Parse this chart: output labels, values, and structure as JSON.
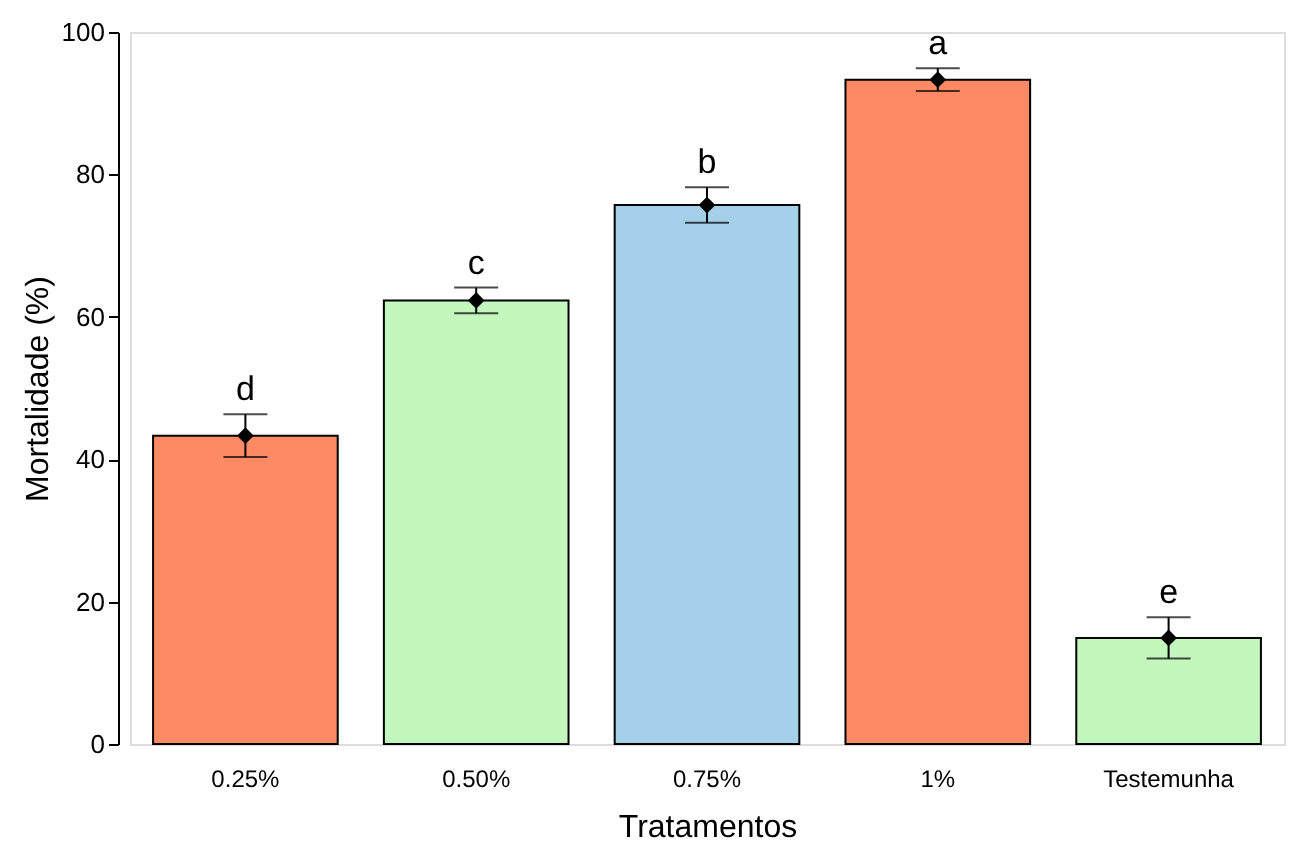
{
  "chart_data": {
    "type": "bar",
    "xlabel": "Tratamentos",
    "ylabel": "Mortalidade (%)",
    "categories": [
      "0.25%",
      "0.50%",
      "0.75%",
      "1%",
      "Testemunha"
    ],
    "values": [
      43.3,
      62.3,
      75.7,
      93.3,
      14.9
    ],
    "colors": [
      "#fe8a65",
      "#c3f7bd",
      "#a5d0ea",
      "#fe8a65",
      "#c3f7bd"
    ],
    "errors": [
      3,
      1.8,
      2.5,
      1.6,
      2.9
    ],
    "ylim": [
      0,
      100
    ],
    "yticks": [
      0,
      20,
      40,
      60,
      80,
      100
    ],
    "grid": false,
    "series": [
      {
        "type": "scatter",
        "marker": "diamond",
        "color": "#000000",
        "x": [
          "0.25%",
          "0.50%",
          "0.75%",
          "1%",
          "Testemunha"
        ],
        "values": [
          43.3,
          62.3,
          75.7,
          93.3,
          14.9
        ]
      }
    ],
    "annotations": [
      {
        "text": "d",
        "x": "0.25%",
        "y": 46.3
      },
      {
        "text": "c",
        "x": "0.50%",
        "y": 64.1
      },
      {
        "text": "b",
        "x": "0.75%",
        "y": 78.2
      },
      {
        "text": "a",
        "x": "1%",
        "y": 94.9
      },
      {
        "text": "e",
        "x": "Testemunha",
        "y": 17.8
      }
    ]
  }
}
